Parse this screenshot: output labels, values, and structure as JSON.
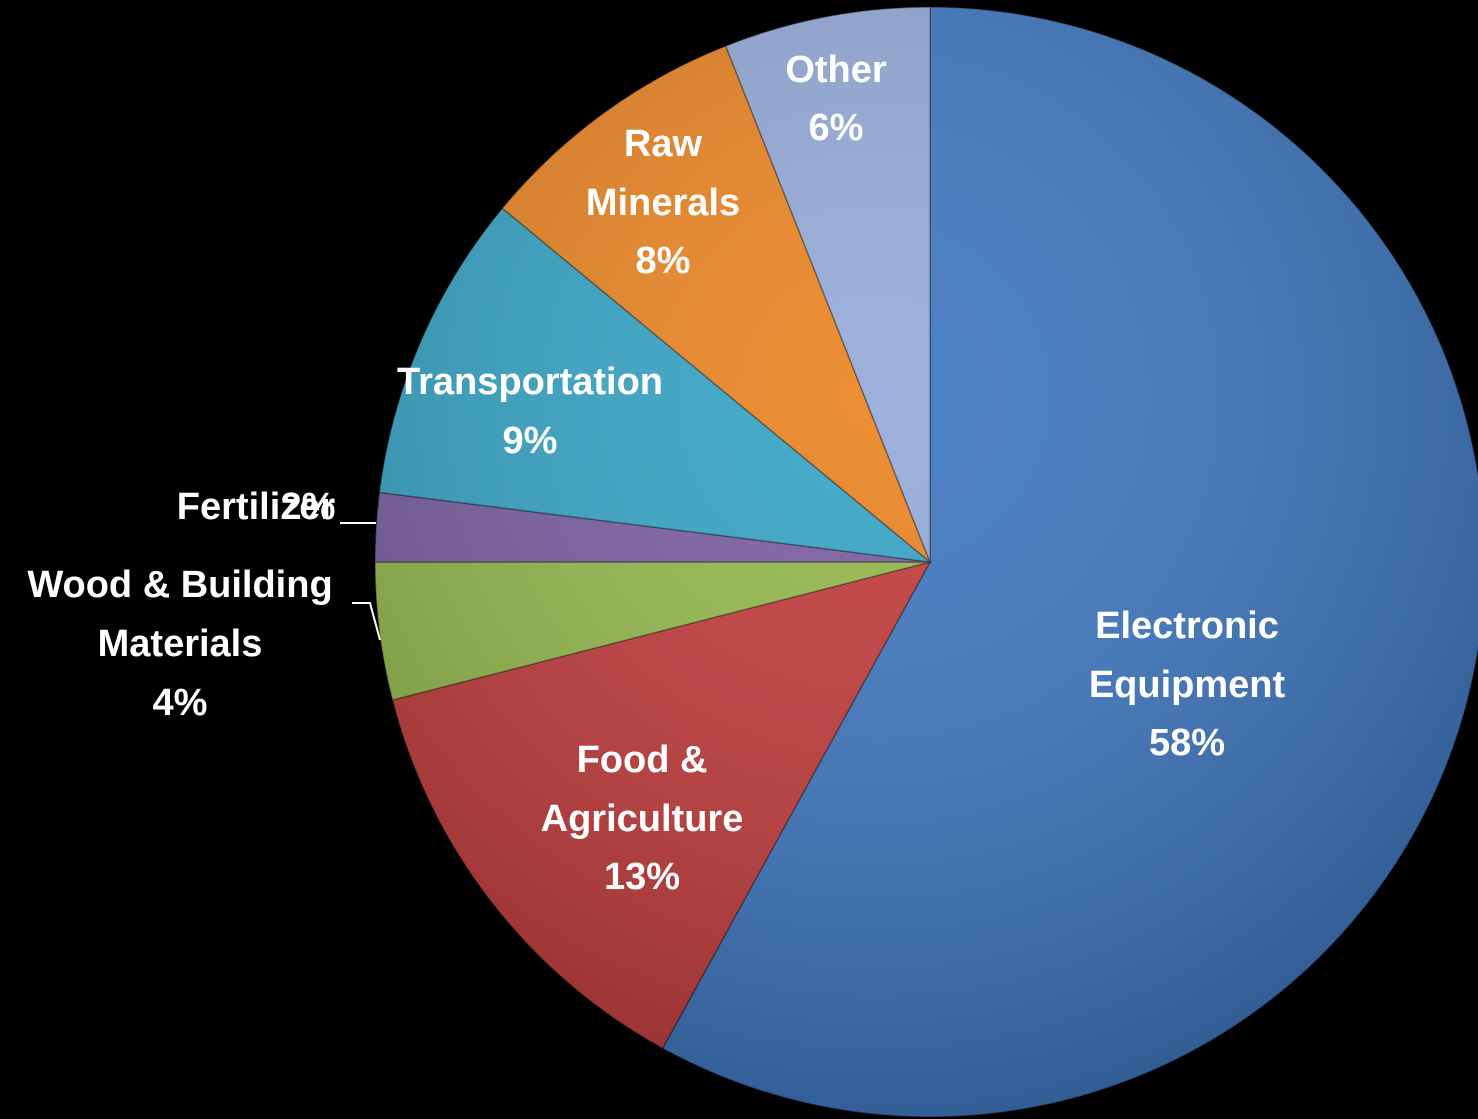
{
  "chart_data": {
    "type": "pie",
    "categories": [
      "Electronic Equipment",
      "Food & Agriculture",
      "Wood & Building Materials",
      "Fertilizer",
      "Transportation",
      "Raw Minerals",
      "Other"
    ],
    "values": [
      58,
      13,
      4,
      2,
      9,
      8,
      6
    ],
    "value_labels": [
      "58%",
      "13%",
      "4%",
      "2%",
      "9%",
      "8%",
      "6%"
    ],
    "colors": [
      "#3d76c0",
      "#c23b3a",
      "#94b94b",
      "#7a5da2",
      "#35a4c5",
      "#ea8422",
      "#94aad8"
    ]
  }
}
